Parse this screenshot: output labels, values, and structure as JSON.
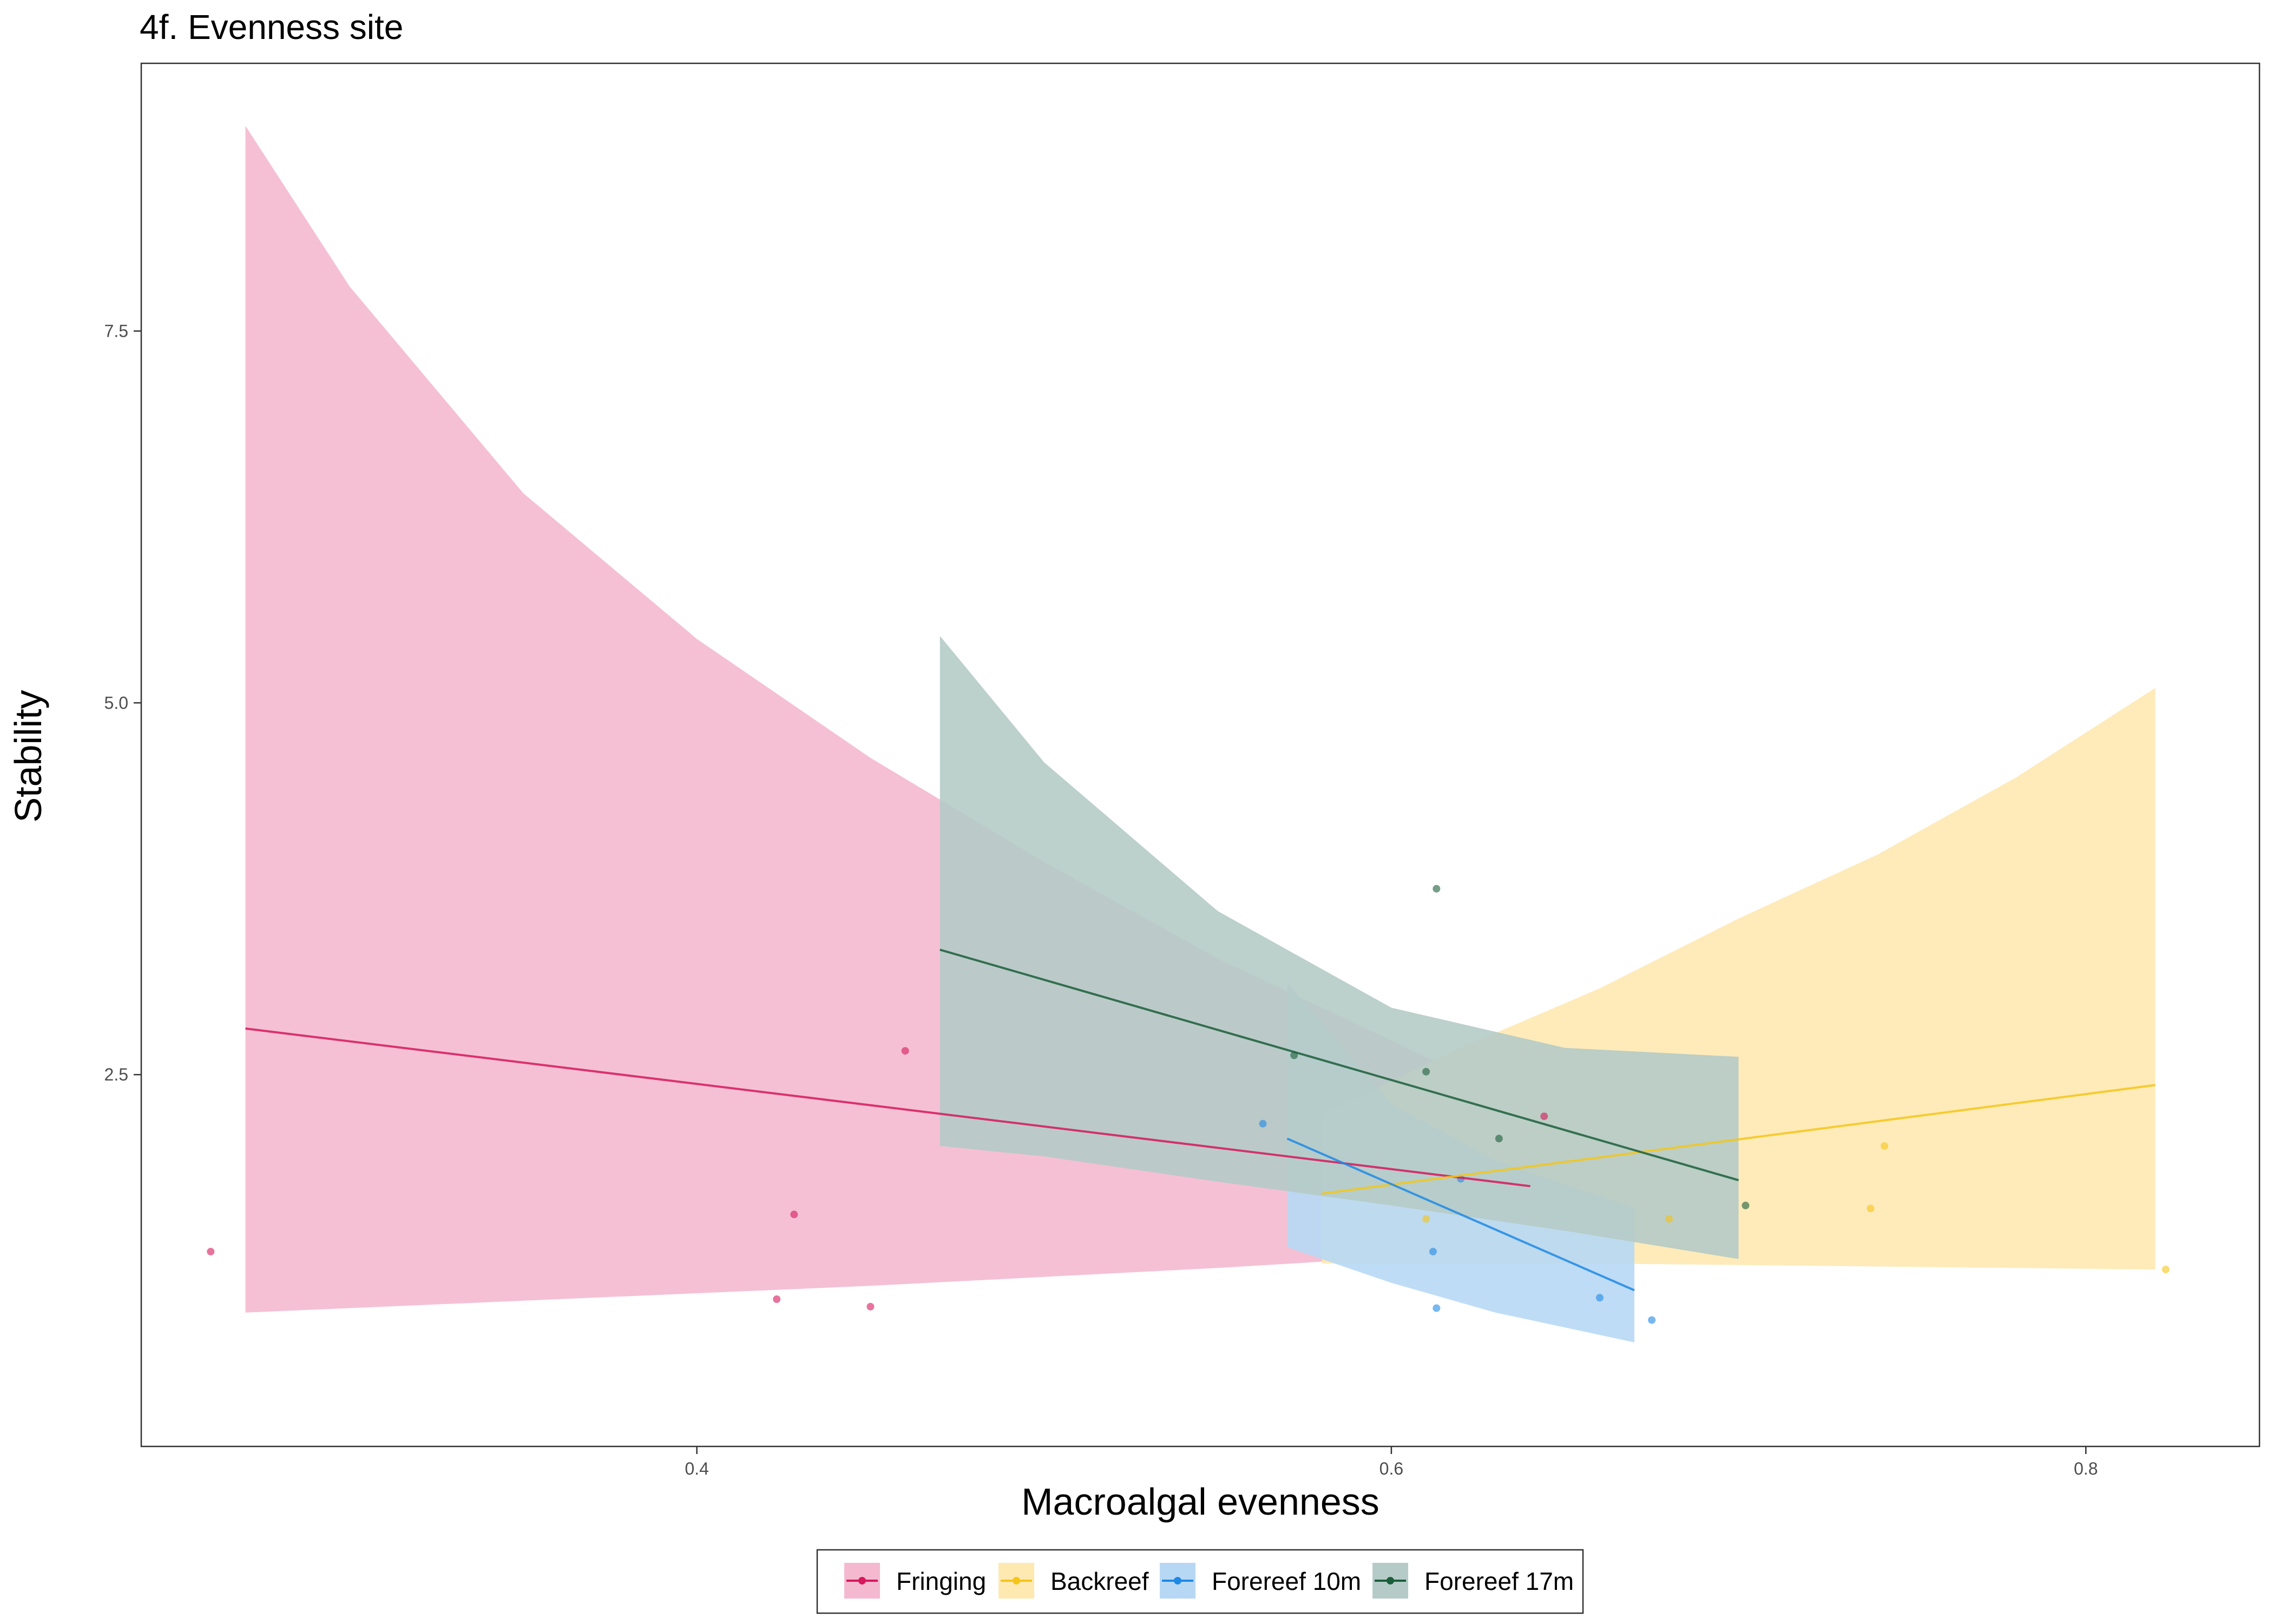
{
  "chart_data": {
    "type": "line",
    "title": "4f. Evenness site",
    "xlabel": "Macroalgal evenness",
    "ylabel": "Stability",
    "xlim": [
      0.24,
      0.85
    ],
    "ylim": [
      0.0,
      9.3
    ],
    "x_ticks": [
      0.4,
      0.6,
      0.8
    ],
    "x_tick_labels": [
      "0.4",
      "0.6",
      "0.8"
    ],
    "y_ticks": [
      2.5,
      5.0,
      7.5
    ],
    "y_tick_labels": [
      "2.5",
      "5.0",
      "7.5"
    ],
    "grid": false,
    "legend_position": "bottom",
    "series": [
      {
        "name": "Fringing",
        "color": "#d6185c",
        "fill": "#f4b9cf",
        "fit": {
          "x": [
            0.27,
            0.64
          ],
          "y": [
            2.81,
            1.75
          ]
        },
        "ribbon": {
          "x": [
            0.27,
            0.3,
            0.35,
            0.4,
            0.45,
            0.5,
            0.55,
            0.6,
            0.64
          ],
          "upper": [
            8.88,
            7.8,
            6.41,
            5.43,
            4.63,
            3.93,
            3.28,
            2.73,
            2.28
          ],
          "lower": [
            0.9,
            0.93,
            0.98,
            1.03,
            1.08,
            1.14,
            1.2,
            1.27,
            1.32
          ]
        },
        "points": {
          "x": [
            0.26,
            0.423,
            0.428,
            0.45,
            0.46,
            0.644
          ],
          "y": [
            1.31,
            0.99,
            1.56,
            0.94,
            2.66,
            2.22
          ]
        }
      },
      {
        "name": "Backreef",
        "color": "#f5c518",
        "fill": "#fee9b1",
        "fit": {
          "x": [
            0.58,
            0.82
          ],
          "y": [
            1.7,
            2.43
          ]
        },
        "ribbon": {
          "x": [
            0.58,
            0.62,
            0.66,
            0.7,
            0.74,
            0.78,
            0.82
          ],
          "upper": [
            2.23,
            2.68,
            3.08,
            3.55,
            3.98,
            4.5,
            5.1
          ],
          "lower": [
            1.23,
            1.23,
            1.23,
            1.22,
            1.21,
            1.2,
            1.19
          ]
        },
        "points": {
          "x": [
            0.61,
            0.68,
            0.738,
            0.742,
            0.823
          ],
          "y": [
            1.53,
            1.53,
            1.6,
            2.02,
            1.19
          ]
        }
      },
      {
        "name": "Forereef 10m",
        "color": "#1e88e5",
        "fill": "#b7d8f4",
        "fit": {
          "x": [
            0.57,
            0.67
          ],
          "y": [
            2.07,
            1.05
          ]
        },
        "ribbon": {
          "x": [
            0.57,
            0.6,
            0.63,
            0.67
          ],
          "upper": [
            3.12,
            2.3,
            1.92,
            1.6
          ],
          "lower": [
            1.34,
            1.1,
            0.9,
            0.7
          ]
        },
        "points": {
          "x": [
            0.563,
            0.612,
            0.613,
            0.62,
            0.66,
            0.675
          ],
          "y": [
            2.17,
            1.31,
            0.93,
            1.8,
            1.0,
            0.85
          ]
        }
      },
      {
        "name": "Forereef 17m",
        "color": "#1b5e3b",
        "fill": "#b5cbc7",
        "fit": {
          "x": [
            0.47,
            0.7
          ],
          "y": [
            3.34,
            1.79
          ]
        },
        "ribbon": {
          "x": [
            0.47,
            0.5,
            0.55,
            0.6,
            0.65,
            0.7
          ],
          "upper": [
            5.45,
            4.6,
            3.6,
            2.95,
            2.68,
            2.62
          ],
          "lower": [
            2.02,
            1.95,
            1.78,
            1.62,
            1.45,
            1.26
          ]
        },
        "points": {
          "x": [
            0.572,
            0.61,
            0.613,
            0.631,
            0.702
          ],
          "y": [
            2.63,
            2.52,
            3.75,
            2.07,
            1.62
          ]
        }
      }
    ]
  }
}
